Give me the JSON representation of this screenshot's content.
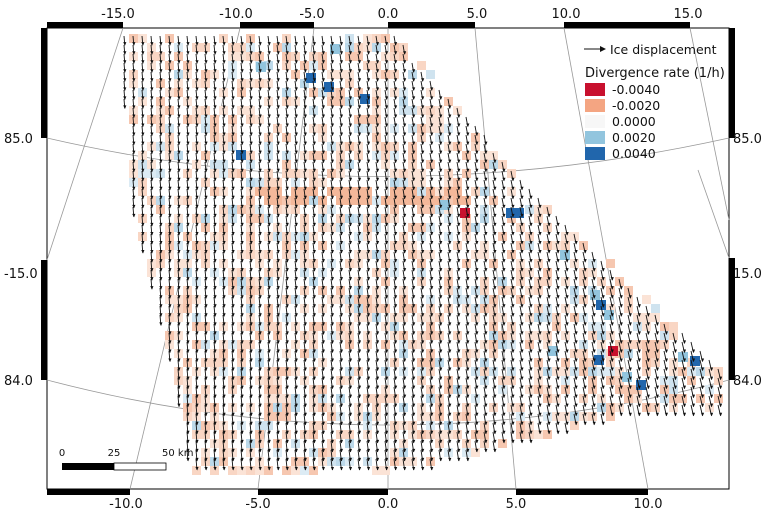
{
  "frame": {
    "top_lon_labels": [
      "-15.0",
      "-10.0",
      "-5.0",
      "0.0",
      "5.0",
      "10.0",
      "15.0"
    ],
    "bottom_lon_labels": [
      "-10.0",
      "-5.0",
      "0.0",
      "5.0",
      "10.0"
    ],
    "left_labels": [
      "85.0",
      "-15.0",
      "84.0"
    ],
    "right_labels": [
      "85.0",
      "15.0",
      "84.0"
    ]
  },
  "legend": {
    "arrow_label": "Ice displacement",
    "title": "Divergence rate (1/h)",
    "classes": [
      {
        "label": "-0.0040",
        "color": "#c8102e"
      },
      {
        "label": "-0.0020",
        "color": "#f4a582"
      },
      {
        "label": "0.0000",
        "color": "#f7f7f7"
      },
      {
        "label": "0.0020",
        "color": "#92c5de"
      },
      {
        "label": "0.0040",
        "color": "#2166ac"
      }
    ]
  },
  "scale_bar": {
    "labels": [
      "0",
      "25",
      "50 km"
    ]
  }
}
